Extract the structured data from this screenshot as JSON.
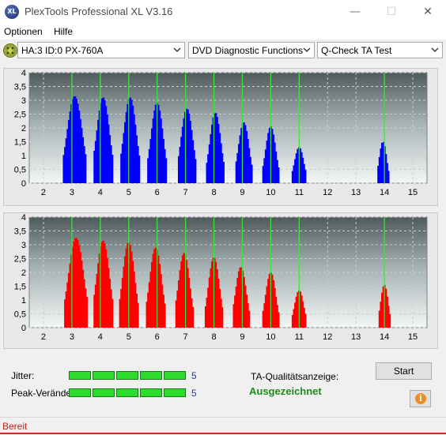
{
  "window": {
    "icon_text": "XL",
    "title": "PlexTools Professional XL V3.16",
    "minimize_glyph": "—",
    "maximize_glyph": "☐",
    "close_glyph": "✕"
  },
  "menu": {
    "items": [
      "Optionen",
      "Hilfe"
    ]
  },
  "toolbar": {
    "drive_icon": "disc-drive-icon",
    "drive_select": "HA:3 ID:0  PX-760A",
    "function_select": "DVD Diagnostic Functions",
    "test_select": "Q-Check TA Test"
  },
  "chart_data": [
    {
      "type": "bar",
      "color": "#0000ff",
      "x_ticks": [
        "2",
        "3",
        "4",
        "5",
        "6",
        "7",
        "8",
        "9",
        "10",
        "11",
        "12",
        "13",
        "14",
        "15"
      ],
      "y_ticks": [
        "4",
        "3,5",
        "3",
        "2,5",
        "2",
        "1,5",
        "1",
        "0,5",
        "0"
      ],
      "xlim": [
        1.5,
        15.5
      ],
      "ylim": [
        0,
        4
      ],
      "green_lines_x": [
        3,
        4,
        5,
        6,
        7,
        8,
        9,
        10,
        11,
        14
      ],
      "peaks": [
        {
          "x": 3.1,
          "height": 3.15,
          "width": 0.82
        },
        {
          "x": 4.1,
          "height": 3.1,
          "width": 0.7
        },
        {
          "x": 5.05,
          "height": 3.1,
          "width": 0.68
        },
        {
          "x": 6.0,
          "height": 2.9,
          "width": 0.66
        },
        {
          "x": 7.05,
          "height": 2.7,
          "width": 0.64
        },
        {
          "x": 8.05,
          "height": 2.55,
          "width": 0.6
        },
        {
          "x": 9.05,
          "height": 2.2,
          "width": 0.58
        },
        {
          "x": 10.0,
          "height": 2.05,
          "width": 0.55
        },
        {
          "x": 11.0,
          "height": 1.3,
          "width": 0.5
        },
        {
          "x": 13.95,
          "height": 1.5,
          "width": 0.4
        }
      ]
    },
    {
      "type": "bar",
      "color": "#ff0000",
      "x_ticks": [
        "2",
        "3",
        "4",
        "5",
        "6",
        "7",
        "8",
        "9",
        "10",
        "11",
        "12",
        "13",
        "14",
        "15"
      ],
      "y_ticks": [
        "4",
        "3,5",
        "3",
        "2,5",
        "2",
        "1,5",
        "1",
        "0,5",
        "0"
      ],
      "xlim": [
        1.5,
        15.5
      ],
      "ylim": [
        0,
        4
      ],
      "green_lines_x": [
        3,
        4,
        5,
        6,
        7,
        8,
        9,
        10,
        11,
        14
      ],
      "peaks": [
        {
          "x": 3.15,
          "height": 3.25,
          "width": 0.82
        },
        {
          "x": 4.1,
          "height": 3.15,
          "width": 0.7
        },
        {
          "x": 5.0,
          "height": 3.1,
          "width": 0.66
        },
        {
          "x": 5.95,
          "height": 2.9,
          "width": 0.66
        },
        {
          "x": 6.95,
          "height": 2.7,
          "width": 0.62
        },
        {
          "x": 8.0,
          "height": 2.55,
          "width": 0.6
        },
        {
          "x": 8.95,
          "height": 2.2,
          "width": 0.58
        },
        {
          "x": 10.0,
          "height": 2.0,
          "width": 0.55
        },
        {
          "x": 11.0,
          "height": 1.35,
          "width": 0.5
        },
        {
          "x": 14.0,
          "height": 1.55,
          "width": 0.4
        }
      ]
    }
  ],
  "results": {
    "jitter_label": "Jitter:",
    "jitter_value": "5",
    "jitter_level": 1.0,
    "peak_label": "Peak-Verände",
    "peak_value": "5",
    "peak_level": 1.0,
    "ta_label": "TA-Qualitätsanzeige:",
    "ta_value": "Ausgezeichnet",
    "start_button": "Start",
    "info_icon": "info-icon",
    "info_glyph": "i"
  },
  "status": {
    "text": "Bereit"
  }
}
